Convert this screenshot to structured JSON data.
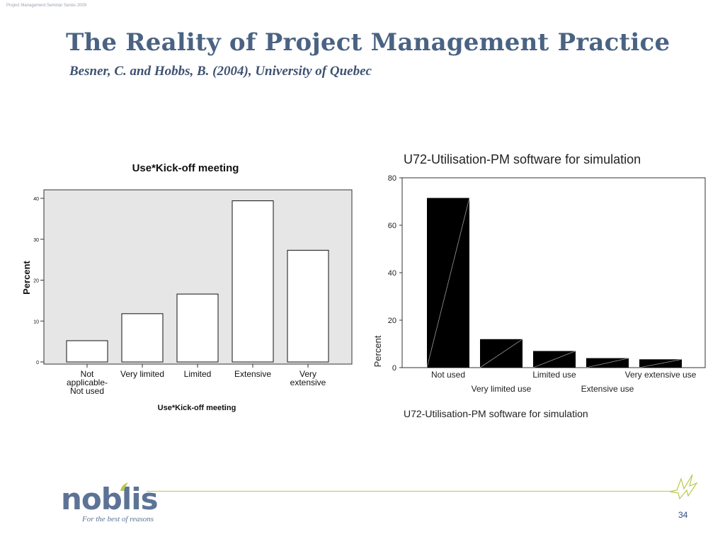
{
  "slide": {
    "header_small": "Project Management Seminar Series 2009",
    "title": "The Reality of Project Management Practice",
    "subtitle": "Besner, C. and Hobbs, B. (2004), University of Quebec",
    "page_number": "34"
  },
  "footer": {
    "logo_text": "noblis",
    "tagline": "For the best of reasons",
    "accent_color": "#b9c94a",
    "brand_color": "#5d7396"
  },
  "chart_data": [
    {
      "type": "bar",
      "title": "Use*Kick-off meeting",
      "xlabel": "Use*Kick-off meeting",
      "ylabel": "Percent",
      "categories": [
        [
          "Not",
          "applicable-",
          "Not used"
        ],
        [
          "Very limited"
        ],
        [
          "Limited"
        ],
        [
          "Extensive"
        ],
        [
          "Very",
          "extensive"
        ]
      ],
      "values": [
        5.2,
        11.8,
        16.6,
        39.4,
        27.3
      ],
      "ylim": [
        0,
        42
      ],
      "yticks": [
        "0",
        "10",
        "20",
        "30",
        "40"
      ],
      "plot_background": "#e6e6e6",
      "bar_color": "#ffffff"
    },
    {
      "type": "bar",
      "title": "U72-Utilisation-PM software for simulation",
      "xlabel": "U72-Utilisation-PM software for simulation",
      "ylabel": "Percent",
      "categories": [
        "Not used",
        "Very limited use",
        "Limited use",
        "Extensive use",
        "Very extensive use"
      ],
      "values": [
        71.5,
        12,
        7,
        4,
        3.5
      ],
      "ylim": [
        0,
        80
      ],
      "yticks": [
        "0",
        "20",
        "40",
        "60",
        "80"
      ],
      "bar_color": "#000000"
    }
  ]
}
